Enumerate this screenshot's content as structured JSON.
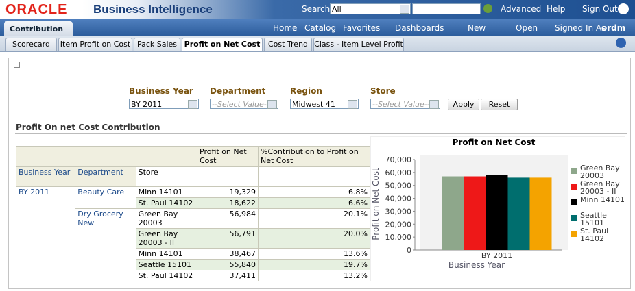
{
  "header": {
    "logo": "ORACLE",
    "title": "Business Intelligence",
    "search_label": "Search",
    "search_scope": "All",
    "links": [
      "Advanced",
      "Help",
      "Sign Out"
    ]
  },
  "nav": {
    "dashboard": "Contribution",
    "items": [
      "Home",
      "Catalog",
      "Favorites",
      "Dashboards",
      "New",
      "Open",
      "Signed In As"
    ],
    "user": "ordm"
  },
  "tabs": {
    "items": [
      "Scorecard",
      "Item Profit on Cost",
      "Pack Sales",
      "Profit on Net Cost",
      "Cost Trend",
      "Class - Item Level Profit"
    ],
    "active": 3
  },
  "prompts": {
    "fields": [
      {
        "label": "Business Year",
        "value": "BY 2011"
      },
      {
        "label": "Department",
        "value": "--Select Value--"
      },
      {
        "label": "Region",
        "value": "Midwest 41"
      },
      {
        "label": "Store",
        "value": "--Select Value--"
      }
    ],
    "buttons": [
      "Apply",
      "Reset"
    ]
  },
  "section_title": "Profit On net Cost Contribution",
  "table": {
    "column_headers": [
      "Profit on Net Cost",
      "%Contribution to Profit on Net Cost"
    ],
    "row_headers": [
      "Business Year",
      "Department",
      "Store"
    ],
    "year": "BY 2011",
    "departments": [
      {
        "name": "Beauty Care",
        "rows": [
          [
            "Minn 14101",
            "19,329",
            "6.8%"
          ],
          [
            "St. Paul 14102",
            "18,622",
            "6.6%"
          ]
        ]
      },
      {
        "name": "Dry Grocery New",
        "rows": [
          [
            "Green Bay 20003",
            "56,984",
            "20.1%"
          ],
          [
            "Green Bay 20003 - II",
            "56,791",
            "20.0%"
          ],
          [
            "Minn 14101",
            "38,467",
            "13.6%"
          ],
          [
            "Seattle 15101",
            "55,840",
            "19.7%"
          ],
          [
            "St. Paul 14102",
            "37,411",
            "13.2%"
          ]
        ]
      }
    ]
  },
  "chart_data": {
    "type": "bar",
    "title": "Profit on Net Cost",
    "x_label": "Business Year",
    "y_label": "Profit on Net Cost",
    "categories": [
      "BY 2011"
    ],
    "series": [
      {
        "name": "Green Bay 20003",
        "color": "#8ea78b",
        "values": [
          57000
        ]
      },
      {
        "name": "Green Bay 20003 - II",
        "color": "#ee1818",
        "values": [
          57000
        ]
      },
      {
        "name": "Minn 14101",
        "color": "#000000",
        "values": [
          58000
        ]
      },
      {
        "name": "Seattle 15101",
        "color": "#006e6e",
        "values": [
          56000
        ]
      },
      {
        "name": "St. Paul 14102",
        "color": "#f4a300",
        "values": [
          56000
        ]
      }
    ],
    "ylim": [
      0,
      70000
    ],
    "yticks": [
      0,
      {
        "value": 10000,
        "label": "10,000"
      },
      {
        "value": 20000,
        "label": "20,000"
      },
      {
        "value": 30000,
        "label": "30,000"
      },
      {
        "value": 40000,
        "label": "40,000"
      },
      {
        "value": 50000,
        "label": "50,000"
      },
      {
        "value": 60000,
        "label": "60,000"
      },
      {
        "value": 70000,
        "label": "70,000"
      }
    ],
    "grid": false
  }
}
